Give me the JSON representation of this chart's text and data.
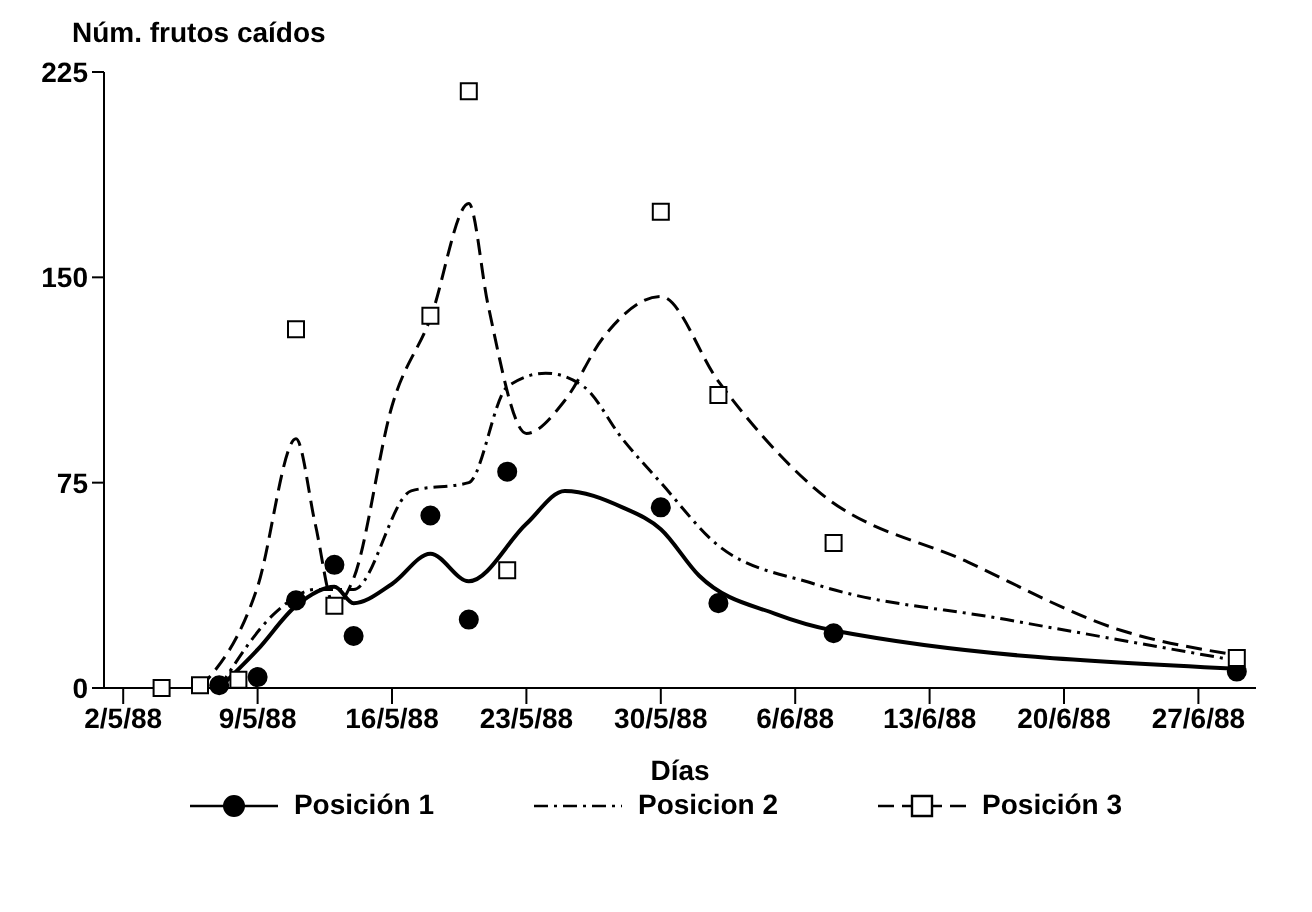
{
  "chart_data": {
    "type": "scatter",
    "ylabel": "Núm. frutos caídos",
    "xlabel": "Días",
    "xlim": [
      "1988-05-01",
      "1988-06-30"
    ],
    "xticks": [
      {
        "value": "1988-05-02",
        "label": "2/5/88"
      },
      {
        "value": "1988-05-09",
        "label": "9/5/88"
      },
      {
        "value": "1988-05-16",
        "label": "16/5/88"
      },
      {
        "value": "1988-05-23",
        "label": "23/5/88"
      },
      {
        "value": "1988-05-30",
        "label": "30/5/88"
      },
      {
        "value": "1988-06-06",
        "label": "6/6/88"
      },
      {
        "value": "1988-06-13",
        "label": "13/6/88"
      },
      {
        "value": "1988-06-20",
        "label": "20/6/88"
      },
      {
        "value": "1988-06-27",
        "label": "27/6/88"
      }
    ],
    "ylim": [
      0,
      225
    ],
    "yticks": [
      0,
      75,
      150,
      225
    ],
    "legend": "bottom",
    "series": [
      {
        "name": "Posición 1",
        "marker": "circle",
        "line_style": "solid",
        "color": "#000000",
        "x": [
          "1988-05-07",
          "1988-05-09",
          "1988-05-11",
          "1988-05-13",
          "1988-05-14",
          "1988-05-18",
          "1988-05-20",
          "1988-05-22",
          "1988-05-30",
          "1988-06-02",
          "1988-06-08",
          "1988-06-29"
        ],
        "values": [
          1,
          4,
          32,
          45,
          19,
          63,
          25,
          79,
          66,
          31,
          20,
          6
        ]
      },
      {
        "type": "line",
        "marker": "none",
        "line_style": "solid",
        "color": "#000000",
        "x": [
          "1988-05-07",
          "1988-05-09",
          "1988-05-11",
          "1988-05-13",
          "1988-05-14",
          "1988-05-16",
          "1988-05-18",
          "1988-05-20",
          "1988-05-23",
          "1988-05-25",
          "1988-05-28",
          "1988-05-30",
          "1988-06-01",
          "1988-06-05",
          "1988-06-08",
          "1988-06-29"
        ],
        "values": [
          0,
          14,
          30,
          37,
          31,
          38,
          49,
          39,
          60,
          72,
          66,
          58,
          41,
          27,
          21,
          7
        ]
      },
      {
        "name": "Posicion 2",
        "type": "line",
        "marker": "none",
        "line_style": "dotted",
        "color": "#000000",
        "x": [
          "1988-05-07",
          "1988-05-10",
          "1988-05-12",
          "1988-05-14",
          "1988-05-17",
          "1988-05-20",
          "1988-05-22",
          "1988-05-24",
          "1988-05-26",
          "1988-05-28",
          "1988-05-30",
          "1988-06-02",
          "1988-06-07",
          "1988-06-17",
          "1988-06-29"
        ],
        "values": [
          0,
          28,
          36,
          36,
          72,
          75,
          110,
          115,
          110,
          91,
          75,
          52,
          38,
          25,
          10
        ]
      },
      {
        "name": "Posición 3",
        "marker": "square",
        "line_style": "dashed",
        "color": "#000000",
        "x": [
          "1988-05-04",
          "1988-05-06",
          "1988-05-08",
          "1988-05-11",
          "1988-05-13",
          "1988-05-18",
          "1988-05-20",
          "1988-05-22",
          "1988-05-30",
          "1988-06-02",
          "1988-06-08",
          "1988-06-29"
        ],
        "values": [
          0,
          1,
          3,
          131,
          30,
          136,
          218,
          43,
          174,
          107,
          53,
          11
        ]
      },
      {
        "type": "line",
        "marker": "none",
        "line_style": "dashed",
        "color": "#000000",
        "x": [
          "1988-05-06",
          "1988-05-09",
          "1988-05-11",
          "1988-05-12",
          "1988-05-13",
          "1988-05-14",
          "1988-05-16",
          "1988-05-18",
          "1988-05-20",
          "1988-05-21",
          "1988-05-23",
          "1988-05-25",
          "1988-05-27",
          "1988-05-30",
          "1988-06-02",
          "1988-06-07",
          "1988-06-15",
          "1988-06-23",
          "1988-06-29"
        ],
        "values": [
          0,
          37,
          91,
          60,
          30,
          40,
          103,
          135,
          177,
          140,
          93,
          105,
          128,
          143,
          112,
          73,
          46,
          21,
          12
        ]
      }
    ]
  }
}
